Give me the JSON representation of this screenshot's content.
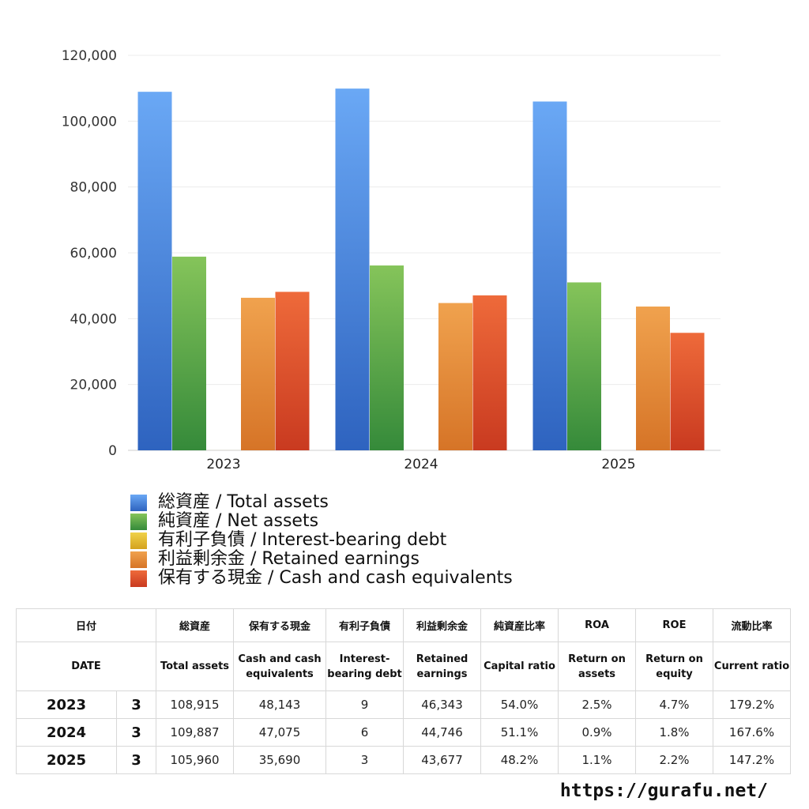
{
  "chart_data": {
    "type": "bar",
    "categories": [
      "2023",
      "2024",
      "2025"
    ],
    "series": [
      {
        "name": "総資産 / Total assets",
        "values": [
          108915,
          109887,
          105960
        ],
        "color_top": "#6aa8f5",
        "color_bottom": "#2e63bf"
      },
      {
        "name": "純資産 / Net assets",
        "values": [
          58837,
          56152,
          51013
        ],
        "color_top": "#85c45a",
        "color_bottom": "#358a3a"
      },
      {
        "name": "有利子負債 / Interest-bearing debt",
        "values": [
          9,
          6,
          3
        ],
        "color_top": "#f0d24a",
        "color_bottom": "#d4a21e"
      },
      {
        "name": "利益剰余金 / Retained earnings",
        "values": [
          46343,
          44746,
          43677
        ],
        "color_top": "#f0a24e",
        "color_bottom": "#d67427"
      },
      {
        "name": "保有する現金 /  Cash and cash equivalents",
        "values": [
          48143,
          47075,
          35690
        ],
        "color_top": "#ee6a3a",
        "color_bottom": "#c93a20"
      }
    ],
    "y_ticks": [
      "0",
      "20,000",
      "40,000",
      "60,000",
      "80,000",
      "100,000",
      "120,000"
    ],
    "ylim": [
      0,
      120000
    ],
    "grid": true,
    "legend_position": "bottom"
  },
  "table": {
    "headers_jp": [
      "日付",
      "総資産",
      "保有する現金",
      "有利子負債",
      "利益剰余金",
      "純資産比率",
      "ROA",
      "ROE",
      "流動比率"
    ],
    "headers_en": [
      "DATE",
      "Total assets",
      "Cash and cash equivalents",
      "Interest-bearing debt",
      "Retained earnings",
      "Capital ratio",
      "Return on assets",
      "Return on equity",
      "Current ratio"
    ],
    "rows": [
      {
        "year": "2023",
        "month": "3",
        "total_assets": "108,915",
        "cash": "48,143",
        "debt": "9",
        "retained": "46,343",
        "capital_ratio": "54.0%",
        "roa": "2.5%",
        "roe": "4.7%",
        "current_ratio": "179.2%"
      },
      {
        "year": "2024",
        "month": "3",
        "total_assets": "109,887",
        "cash": "47,075",
        "debt": "6",
        "retained": "44,746",
        "capital_ratio": "51.1%",
        "roa": "0.9%",
        "roe": "1.8%",
        "current_ratio": "167.6%"
      },
      {
        "year": "2025",
        "month": "3",
        "total_assets": "105,960",
        "cash": "35,690",
        "debt": "3",
        "retained": "43,677",
        "capital_ratio": "48.2%",
        "roa": "1.1%",
        "roe": "2.2%",
        "current_ratio": "147.2%"
      }
    ]
  },
  "footer": {
    "url": "https://gurafu.net/"
  }
}
